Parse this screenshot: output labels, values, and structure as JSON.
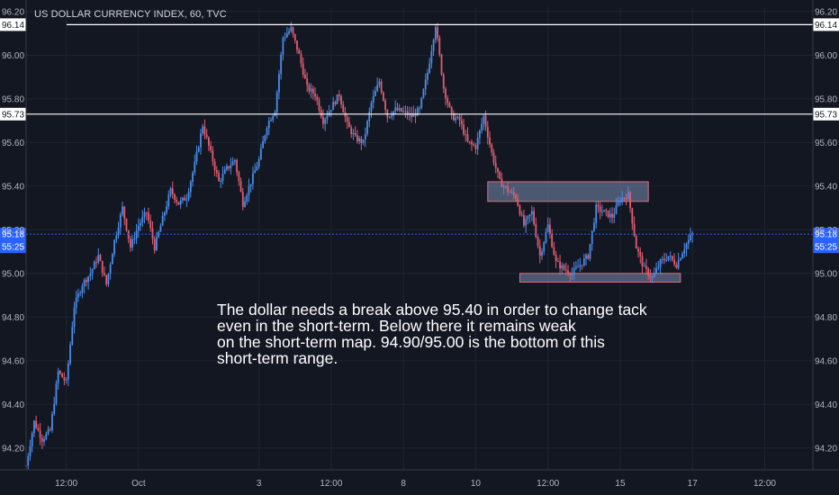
{
  "chart_data": {
    "type": "candlestick",
    "title": "US DOLLAR CURRENCY INDEX, 60, TVC",
    "ylim": [
      94.1,
      96.22
    ],
    "y_ticks": [
      "96.20",
      "96.00",
      "95.80",
      "95.60",
      "95.40",
      "95.20",
      "95.00",
      "94.80",
      "94.60",
      "94.40",
      "94.20"
    ],
    "x_ticks": [
      "12:00",
      "Oct",
      "3",
      "12:00",
      "8",
      "10",
      "12:00",
      "15",
      "17",
      "12:00"
    ],
    "x_tick_positions": [
      10,
      28,
      58,
      76,
      94,
      112,
      130,
      148,
      166,
      184
    ],
    "x_range": [
      0,
      196
    ],
    "current_price": "95.18",
    "countdown": "55:25",
    "horizontal_levels": [
      {
        "value": 96.14,
        "label": "96.14"
      },
      {
        "value": 95.73,
        "label": "95.73"
      }
    ],
    "zones": [
      {
        "x_start": 115,
        "x_end": 155,
        "y_low": 95.33,
        "y_high": 95.42
      },
      {
        "x_start": 123,
        "x_end": 163,
        "y_low": 94.96,
        "y_high": 95.0
      }
    ],
    "path": [
      [
        0,
        94.12
      ],
      [
        2,
        94.32
      ],
      [
        4,
        94.24
      ],
      [
        6,
        94.28
      ],
      [
        8,
        94.55
      ],
      [
        10,
        94.5
      ],
      [
        12,
        94.85
      ],
      [
        14,
        94.95
      ],
      [
        16,
        95.0
      ],
      [
        18,
        95.08
      ],
      [
        20,
        94.95
      ],
      [
        22,
        95.15
      ],
      [
        24,
        95.3
      ],
      [
        26,
        95.12
      ],
      [
        28,
        95.22
      ],
      [
        30,
        95.28
      ],
      [
        32,
        95.12
      ],
      [
        34,
        95.25
      ],
      [
        36,
        95.38
      ],
      [
        38,
        95.32
      ],
      [
        40,
        95.35
      ],
      [
        42,
        95.5
      ],
      [
        44,
        95.68
      ],
      [
        46,
        95.55
      ],
      [
        48,
        95.42
      ],
      [
        50,
        95.48
      ],
      [
        52,
        95.52
      ],
      [
        54,
        95.32
      ],
      [
        56,
        95.42
      ],
      [
        58,
        95.52
      ],
      [
        60,
        95.68
      ],
      [
        62,
        95.75
      ],
      [
        64,
        96.08
      ],
      [
        66,
        96.12
      ],
      [
        68,
        96.0
      ],
      [
        70,
        95.85
      ],
      [
        72,
        95.82
      ],
      [
        74,
        95.7
      ],
      [
        76,
        95.76
      ],
      [
        78,
        95.82
      ],
      [
        80,
        95.68
      ],
      [
        82,
        95.62
      ],
      [
        84,
        95.6
      ],
      [
        86,
        95.78
      ],
      [
        88,
        95.88
      ],
      [
        90,
        95.72
      ],
      [
        92,
        95.75
      ],
      [
        94,
        95.74
      ],
      [
        96,
        95.72
      ],
      [
        98,
        95.75
      ],
      [
        100,
        95.92
      ],
      [
        102,
        96.14
      ],
      [
        104,
        95.85
      ],
      [
        106,
        95.72
      ],
      [
        108,
        95.7
      ],
      [
        110,
        95.6
      ],
      [
        112,
        95.58
      ],
      [
        114,
        95.72
      ],
      [
        116,
        95.55
      ],
      [
        118,
        95.42
      ],
      [
        120,
        95.38
      ],
      [
        122,
        95.35
      ],
      [
        124,
        95.22
      ],
      [
        126,
        95.28
      ],
      [
        128,
        95.08
      ],
      [
        130,
        95.22
      ],
      [
        132,
        95.05
      ],
      [
        134,
        95.02
      ],
      [
        136,
        95.0
      ],
      [
        138,
        95.04
      ],
      [
        140,
        95.08
      ],
      [
        142,
        95.3
      ],
      [
        144,
        95.28
      ],
      [
        146,
        95.26
      ],
      [
        148,
        95.34
      ],
      [
        150,
        95.36
      ],
      [
        152,
        95.12
      ],
      [
        154,
        95.02
      ],
      [
        156,
        94.98
      ],
      [
        158,
        95.05
      ],
      [
        160,
        95.08
      ],
      [
        162,
        95.04
      ],
      [
        164,
        95.12
      ],
      [
        166,
        95.18
      ]
    ]
  },
  "annotation": "The dollar needs a break above 95.40 in order to change tack\neven in the short-term. Below there it remains weak\non the short-term map. 94.90/95.00 is the bottom of this\nshort-term range.",
  "colors": {
    "background": "#131722",
    "up": "#4a8de8",
    "down": "#e05d6f",
    "zone_fill": "#5f6f8c",
    "zone_border": "#d9707e",
    "level_line": "#ffffff",
    "price_line": "#2962ff"
  }
}
